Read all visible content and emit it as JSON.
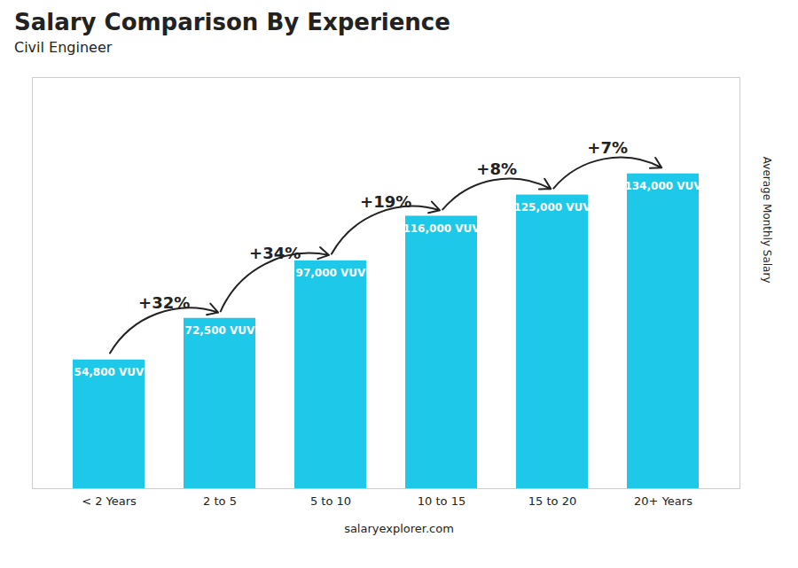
{
  "chart_data": {
    "type": "bar",
    "title": "Salary Comparison By Experience",
    "subtitle": "Civil Engineer",
    "ylabel": "Average Monthly Salary",
    "caption": "salaryexplorer.com",
    "categories": [
      "< 2 Years",
      "2 to 5",
      "5 to 10",
      "10 to 15",
      "15 to 20",
      "20+ Years"
    ],
    "values": [
      54800,
      72500,
      97000,
      116000,
      125000,
      134000
    ],
    "value_labels": [
      "54,800 VUV",
      "72,500 VUV",
      "97,000 VUV",
      "116,000 VUV",
      "125,000 VUV",
      "134,000 VUV"
    ],
    "data_labels": true,
    "annotations": [
      {
        "text": "+32%",
        "from": "< 2 Years",
        "to": "2 to 5"
      },
      {
        "text": "+34%",
        "from": "2 to 5",
        "to": "5 to 10"
      },
      {
        "text": "+19%",
        "from": "5 to 10",
        "to": "10 to 15"
      },
      {
        "text": "+8%",
        "from": "10 to 15",
        "to": "15 to 20"
      },
      {
        "text": "+7%",
        "from": "15 to 20",
        "to": "20+ Years"
      }
    ],
    "color": "#1ec8e8",
    "ylim": [
      0,
      175000
    ],
    "yticks": [],
    "tick_labels": "x",
    "grid": false
  }
}
